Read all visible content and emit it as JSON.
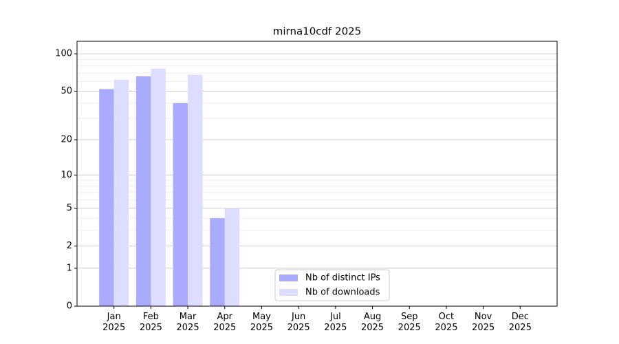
{
  "chart_data": {
    "type": "bar",
    "title": "mirna10cdf 2025",
    "categories": [
      "Jan\n2025",
      "Feb\n2025",
      "Mar\n2025",
      "Apr\n2025",
      "May\n2025",
      "Jun\n2025",
      "Jul\n2025",
      "Aug\n2025",
      "Sep\n2025",
      "Oct\n2025",
      "Nov\n2025",
      "Dec\n2025"
    ],
    "series": [
      {
        "name": "Nb of distinct IPs",
        "color": "#aaaaff",
        "values": [
          52,
          66,
          40,
          4,
          0,
          0,
          0,
          0,
          0,
          0,
          0,
          0
        ]
      },
      {
        "name": "Nb of downloads",
        "color": "#ddddff",
        "values": [
          62,
          76,
          68,
          5,
          0,
          0,
          0,
          0,
          0,
          0,
          0,
          0
        ]
      }
    ],
    "yscale": "log1p",
    "ylim": [
      0,
      126
    ],
    "yticks": [
      0,
      1,
      2,
      5,
      10,
      20,
      50,
      100
    ],
    "minor_yticks": [
      3,
      4,
      6,
      7,
      8,
      9,
      30,
      40,
      60,
      70,
      80,
      90
    ],
    "grid": true,
    "legend": "lower center"
  }
}
